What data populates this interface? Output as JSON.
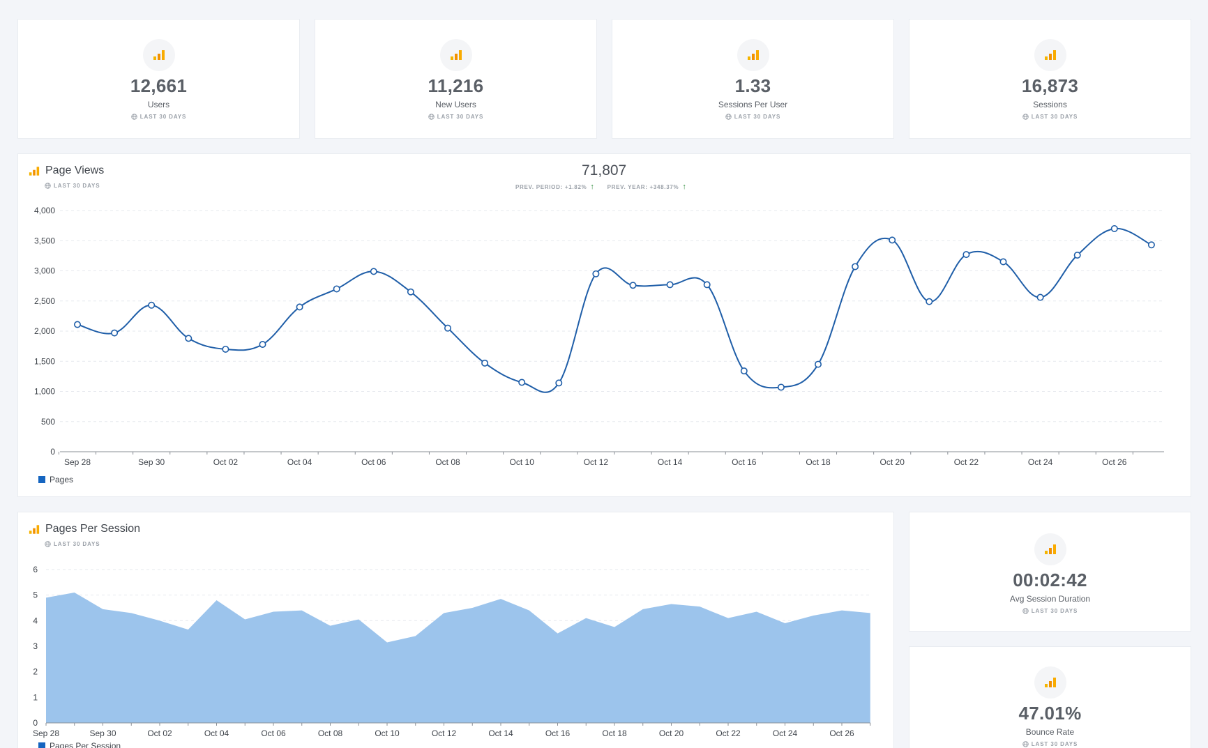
{
  "stats": [
    {
      "value": "12,661",
      "label": "Users",
      "period": "LAST 30 DAYS"
    },
    {
      "value": "11,216",
      "label": "New Users",
      "period": "LAST 30 DAYS"
    },
    {
      "value": "1.33",
      "label": "Sessions Per User",
      "period": "LAST 30 DAYS"
    },
    {
      "value": "16,873",
      "label": "Sessions",
      "period": "LAST 30 DAYS"
    }
  ],
  "side_stats": [
    {
      "value": "00:02:42",
      "label": "Avg Session Duration",
      "period": "LAST 30 DAYS"
    },
    {
      "value": "47.01%",
      "label": "Bounce Rate",
      "period": "LAST 30 DAYS"
    }
  ],
  "colors": {
    "line": "#1f5ea8",
    "area": "#9cc4ec",
    "legend": "#1565c0",
    "arrow": "#2e8b3a"
  },
  "page_views": {
    "title": "Page Views",
    "period": "LAST 30 DAYS",
    "total": "71,807",
    "prev_period": "PREV. PERIOD: +1.82%",
    "prev_year": "PREV. YEAR: +348.37%"
  },
  "pages_per_session": {
    "title": "Pages Per Session",
    "period": "LAST 30 DAYS"
  },
  "chart_data": [
    {
      "type": "line",
      "title": "Page Views",
      "x": [
        "Sep 28",
        "Sep 29",
        "Sep 30",
        "Oct 01",
        "Oct 02",
        "Oct 03",
        "Oct 04",
        "Oct 05",
        "Oct 06",
        "Oct 07",
        "Oct 08",
        "Oct 09",
        "Oct 10",
        "Oct 11",
        "Oct 12",
        "Oct 13",
        "Oct 14",
        "Oct 15",
        "Oct 16",
        "Oct 17",
        "Oct 18",
        "Oct 19",
        "Oct 20",
        "Oct 21",
        "Oct 22",
        "Oct 23",
        "Oct 24",
        "Oct 25",
        "Oct 26",
        "Oct 27"
      ],
      "tick_labels": [
        "Sep 28",
        "Sep 30",
        "Oct 02",
        "Oct 04",
        "Oct 06",
        "Oct 08",
        "Oct 10",
        "Oct 12",
        "Oct 14",
        "Oct 16",
        "Oct 18",
        "Oct 20",
        "Oct 22",
        "Oct 24",
        "Oct 26"
      ],
      "series": [
        {
          "name": "Pages",
          "values": [
            2110,
            1970,
            2430,
            1880,
            1700,
            1780,
            2400,
            2700,
            2990,
            2650,
            2050,
            1470,
            1150,
            1140,
            2950,
            2760,
            2770,
            2770,
            1340,
            1070,
            1450,
            3070,
            3510,
            2490,
            3270,
            3150,
            2560,
            3260,
            3700,
            3430
          ]
        }
      ],
      "ylim": [
        0,
        4000
      ],
      "yticks": [
        "0",
        "500",
        "1,000",
        "1,500",
        "2,000",
        "2,500",
        "3,000",
        "3,500",
        "4,000"
      ],
      "legend": "Pages"
    },
    {
      "type": "area",
      "title": "Pages Per Session",
      "x": [
        "Sep 28",
        "Sep 29",
        "Sep 30",
        "Oct 01",
        "Oct 02",
        "Oct 03",
        "Oct 04",
        "Oct 05",
        "Oct 06",
        "Oct 07",
        "Oct 08",
        "Oct 09",
        "Oct 10",
        "Oct 11",
        "Oct 12",
        "Oct 13",
        "Oct 14",
        "Oct 15",
        "Oct 16",
        "Oct 17",
        "Oct 18",
        "Oct 19",
        "Oct 20",
        "Oct 21",
        "Oct 22",
        "Oct 23",
        "Oct 24",
        "Oct 25",
        "Oct 26",
        "Oct 27"
      ],
      "tick_labels": [
        "Sep 28",
        "Sep 30",
        "Oct 02",
        "Oct 04",
        "Oct 06",
        "Oct 08",
        "Oct 10",
        "Oct 12",
        "Oct 14",
        "Oct 16",
        "Oct 18",
        "Oct 20",
        "Oct 22",
        "Oct 24",
        "Oct 26"
      ],
      "series": [
        {
          "name": "Pages Per Session",
          "values": [
            4.9,
            5.1,
            4.45,
            4.3,
            4.0,
            3.65,
            4.8,
            4.05,
            4.35,
            4.4,
            3.8,
            4.05,
            3.15,
            3.4,
            4.3,
            4.5,
            4.85,
            4.4,
            3.5,
            4.1,
            3.75,
            4.45,
            4.65,
            4.55,
            4.1,
            4.35,
            3.9,
            4.2,
            4.4,
            4.3
          ]
        }
      ],
      "ylim": [
        0,
        6
      ],
      "yticks": [
        "0",
        "1",
        "2",
        "3",
        "4",
        "5",
        "6"
      ],
      "legend": "Pages Per Session"
    }
  ]
}
